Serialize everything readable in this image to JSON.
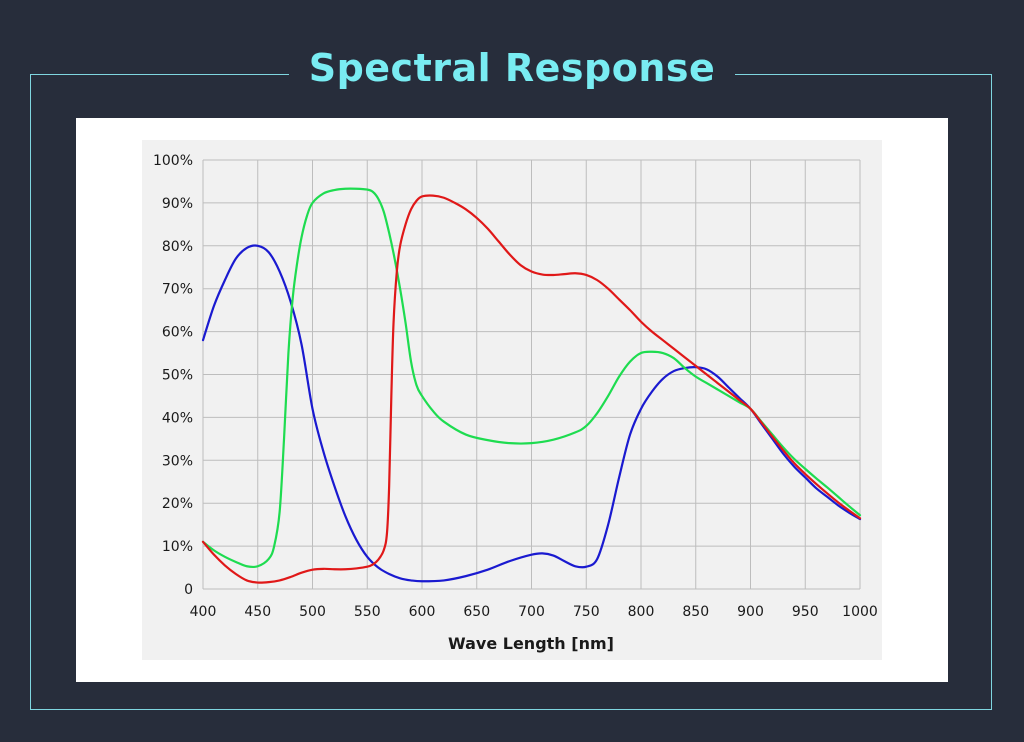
{
  "title": "Spectral Response",
  "chart_data": {
    "type": "line",
    "title": "Spectral Response",
    "xlabel": "Wave Length [nm]",
    "ylabel": "",
    "xlim": [
      400,
      1000
    ],
    "ylim": [
      0,
      100
    ],
    "grid": true,
    "x_ticks": [
      400,
      450,
      500,
      550,
      600,
      650,
      700,
      750,
      800,
      850,
      900,
      950,
      1000
    ],
    "x_tick_labels": [
      "400",
      "450",
      "500",
      "550",
      "600",
      "650",
      "700",
      "750",
      "800",
      "850",
      "900",
      "950",
      "1000"
    ],
    "y_ticks": [
      0,
      10,
      20,
      30,
      40,
      50,
      60,
      70,
      80,
      90,
      100
    ],
    "y_tick_labels": [
      "0",
      "10%",
      "20%",
      "30%",
      "40%",
      "50%",
      "60%",
      "70%",
      "80%",
      "90%",
      "100%"
    ],
    "series": [
      {
        "name": "Blue",
        "color": "#1a1ad0",
        "points": [
          [
            400,
            58
          ],
          [
            410,
            66
          ],
          [
            420,
            72
          ],
          [
            430,
            77
          ],
          [
            440,
            79.5
          ],
          [
            450,
            80
          ],
          [
            460,
            78.5
          ],
          [
            470,
            74
          ],
          [
            480,
            67
          ],
          [
            490,
            57
          ],
          [
            500,
            42
          ],
          [
            510,
            32
          ],
          [
            520,
            24
          ],
          [
            530,
            17
          ],
          [
            540,
            11.5
          ],
          [
            550,
            7.5
          ],
          [
            560,
            5
          ],
          [
            570,
            3.5
          ],
          [
            580,
            2.5
          ],
          [
            590,
            2
          ],
          [
            600,
            1.8
          ],
          [
            620,
            2
          ],
          [
            640,
            3
          ],
          [
            660,
            4.5
          ],
          [
            680,
            6.5
          ],
          [
            700,
            8
          ],
          [
            710,
            8.3
          ],
          [
            720,
            7.8
          ],
          [
            730,
            6.5
          ],
          [
            740,
            5.3
          ],
          [
            750,
            5.2
          ],
          [
            760,
            7
          ],
          [
            770,
            15
          ],
          [
            780,
            26
          ],
          [
            790,
            36
          ],
          [
            800,
            42
          ],
          [
            810,
            46
          ],
          [
            820,
            49
          ],
          [
            830,
            50.8
          ],
          [
            840,
            51.5
          ],
          [
            850,
            51.7
          ],
          [
            860,
            51.2
          ],
          [
            870,
            49.5
          ],
          [
            880,
            47
          ],
          [
            890,
            44.5
          ],
          [
            900,
            42
          ],
          [
            910,
            38.5
          ],
          [
            920,
            35
          ],
          [
            930,
            31.5
          ],
          [
            940,
            28.5
          ],
          [
            950,
            26
          ],
          [
            960,
            23.5
          ],
          [
            970,
            21.5
          ],
          [
            980,
            19.5
          ],
          [
            990,
            17.8
          ],
          [
            1000,
            16.3
          ]
        ]
      },
      {
        "name": "Green",
        "color": "#1edc50",
        "points": [
          [
            400,
            11
          ],
          [
            410,
            9
          ],
          [
            420,
            7.5
          ],
          [
            430,
            6.3
          ],
          [
            440,
            5.3
          ],
          [
            450,
            5.3
          ],
          [
            460,
            7
          ],
          [
            465,
            10
          ],
          [
            470,
            18
          ],
          [
            474,
            35
          ],
          [
            478,
            55
          ],
          [
            482,
            68
          ],
          [
            486,
            76
          ],
          [
            490,
            82
          ],
          [
            495,
            87
          ],
          [
            500,
            90
          ],
          [
            510,
            92.2
          ],
          [
            520,
            93
          ],
          [
            530,
            93.3
          ],
          [
            540,
            93.3
          ],
          [
            550,
            93.1
          ],
          [
            555,
            92.6
          ],
          [
            560,
            91
          ],
          [
            565,
            88
          ],
          [
            570,
            83
          ],
          [
            575,
            77
          ],
          [
            580,
            70
          ],
          [
            585,
            62
          ],
          [
            590,
            53
          ],
          [
            595,
            47.5
          ],
          [
            600,
            45
          ],
          [
            610,
            41.5
          ],
          [
            620,
            39
          ],
          [
            640,
            36
          ],
          [
            660,
            34.7
          ],
          [
            680,
            34
          ],
          [
            700,
            34
          ],
          [
            720,
            34.8
          ],
          [
            740,
            36.5
          ],
          [
            750,
            38
          ],
          [
            760,
            41
          ],
          [
            770,
            45
          ],
          [
            780,
            49.5
          ],
          [
            790,
            53
          ],
          [
            800,
            55
          ],
          [
            810,
            55.3
          ],
          [
            820,
            55
          ],
          [
            830,
            53.8
          ],
          [
            840,
            51.5
          ],
          [
            850,
            49.5
          ],
          [
            860,
            48
          ],
          [
            870,
            46.5
          ],
          [
            880,
            45
          ],
          [
            890,
            43.5
          ],
          [
            900,
            42
          ],
          [
            910,
            39
          ],
          [
            920,
            36
          ],
          [
            930,
            33
          ],
          [
            940,
            30.3
          ],
          [
            950,
            28
          ],
          [
            960,
            25.8
          ],
          [
            970,
            23.7
          ],
          [
            980,
            21.5
          ],
          [
            990,
            19.3
          ],
          [
            1000,
            17.2
          ]
        ]
      },
      {
        "name": "Red",
        "color": "#e01818",
        "points": [
          [
            400,
            11
          ],
          [
            410,
            8
          ],
          [
            420,
            5.5
          ],
          [
            430,
            3.5
          ],
          [
            440,
            2
          ],
          [
            450,
            1.5
          ],
          [
            460,
            1.6
          ],
          [
            470,
            2
          ],
          [
            480,
            2.8
          ],
          [
            490,
            3.8
          ],
          [
            500,
            4.5
          ],
          [
            510,
            4.7
          ],
          [
            520,
            4.6
          ],
          [
            530,
            4.6
          ],
          [
            540,
            4.8
          ],
          [
            550,
            5.2
          ],
          [
            555,
            5.7
          ],
          [
            560,
            6.8
          ],
          [
            565,
            9
          ],
          [
            568,
            13
          ],
          [
            570,
            24
          ],
          [
            572,
            45
          ],
          [
            574,
            62
          ],
          [
            577,
            74
          ],
          [
            580,
            80
          ],
          [
            585,
            85
          ],
          [
            590,
            88.5
          ],
          [
            595,
            90.5
          ],
          [
            600,
            91.5
          ],
          [
            610,
            91.7
          ],
          [
            620,
            91.2
          ],
          [
            630,
            90
          ],
          [
            640,
            88.5
          ],
          [
            650,
            86.5
          ],
          [
            660,
            84
          ],
          [
            670,
            81
          ],
          [
            680,
            78
          ],
          [
            690,
            75.5
          ],
          [
            700,
            74
          ],
          [
            710,
            73.3
          ],
          [
            720,
            73.2
          ],
          [
            730,
            73.4
          ],
          [
            740,
            73.6
          ],
          [
            750,
            73.2
          ],
          [
            760,
            72
          ],
          [
            770,
            70
          ],
          [
            780,
            67.5
          ],
          [
            790,
            65
          ],
          [
            800,
            62.3
          ],
          [
            810,
            60
          ],
          [
            820,
            58
          ],
          [
            830,
            56
          ],
          [
            840,
            54
          ],
          [
            850,
            52
          ],
          [
            860,
            50
          ],
          [
            870,
            48
          ],
          [
            880,
            46
          ],
          [
            890,
            44
          ],
          [
            900,
            42
          ],
          [
            910,
            38.8
          ],
          [
            920,
            35.5
          ],
          [
            930,
            32.3
          ],
          [
            940,
            29.3
          ],
          [
            950,
            26.8
          ],
          [
            960,
            24.5
          ],
          [
            970,
            22.3
          ],
          [
            980,
            20.2
          ],
          [
            990,
            18.3
          ],
          [
            1000,
            16.5
          ]
        ]
      }
    ]
  }
}
